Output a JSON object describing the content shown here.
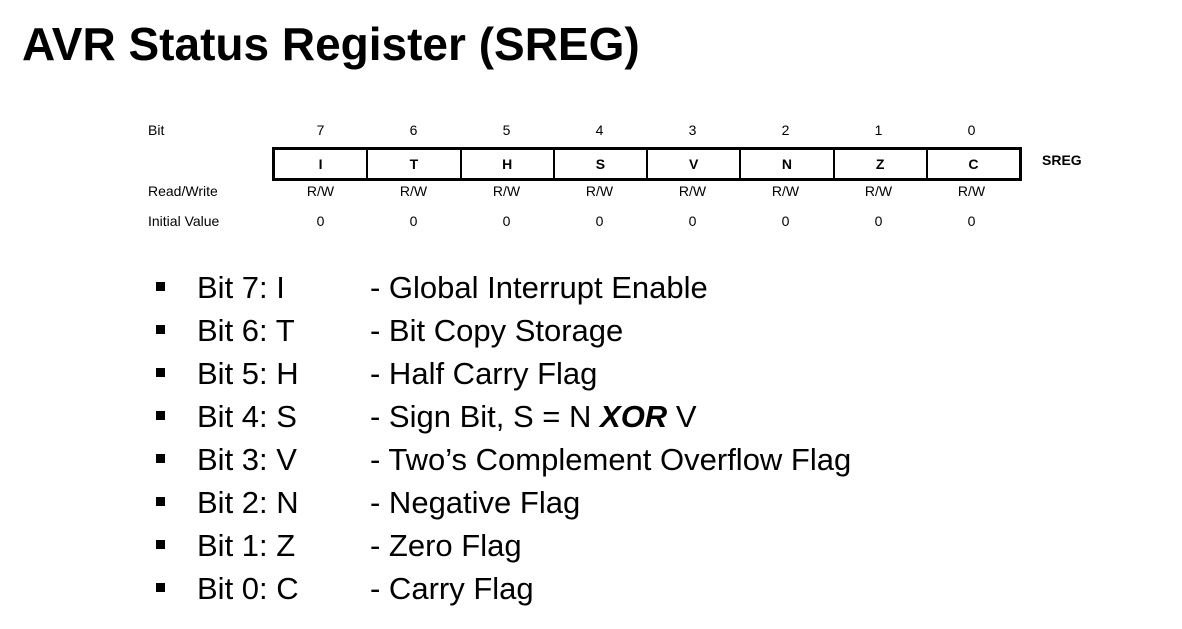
{
  "title": "AVR Status Register (SREG)",
  "register": {
    "bit_label": "Bit",
    "rw_label": "Read/Write",
    "init_label": "Initial Value",
    "name": "SREG",
    "bits": [
      {
        "num": "7",
        "flag": "I",
        "rw": "R/W",
        "init": "0"
      },
      {
        "num": "6",
        "flag": "T",
        "rw": "R/W",
        "init": "0"
      },
      {
        "num": "5",
        "flag": "H",
        "rw": "R/W",
        "init": "0"
      },
      {
        "num": "4",
        "flag": "S",
        "rw": "R/W",
        "init": "0"
      },
      {
        "num": "3",
        "flag": "V",
        "rw": "R/W",
        "init": "0"
      },
      {
        "num": "2",
        "flag": "N",
        "rw": "R/W",
        "init": "0"
      },
      {
        "num": "1",
        "flag": "Z",
        "rw": "R/W",
        "init": "0"
      },
      {
        "num": "0",
        "flag": "C",
        "rw": "R/W",
        "init": "0"
      }
    ]
  },
  "bullets": [
    {
      "bit": "Bit 7: I",
      "desc": "- Global Interrupt Enable"
    },
    {
      "bit": "Bit 6: T",
      "desc": "- Bit Copy Storage"
    },
    {
      "bit": "Bit 5: H",
      "desc": "- Half Carry Flag"
    },
    {
      "bit": "Bit 4: S",
      "desc": "- Sign Bit, S = N ",
      "desc_bold": "XOR",
      "desc_after": " V"
    },
    {
      "bit": "Bit 3: V",
      "desc": "- Two’s Complement Overflow Flag"
    },
    {
      "bit": "Bit 2: N",
      "desc": "- Negative Flag"
    },
    {
      "bit": "Bit 1: Z",
      "desc": "- Zero Flag"
    },
    {
      "bit": "Bit 0: C",
      "desc": "- Carry Flag"
    }
  ]
}
